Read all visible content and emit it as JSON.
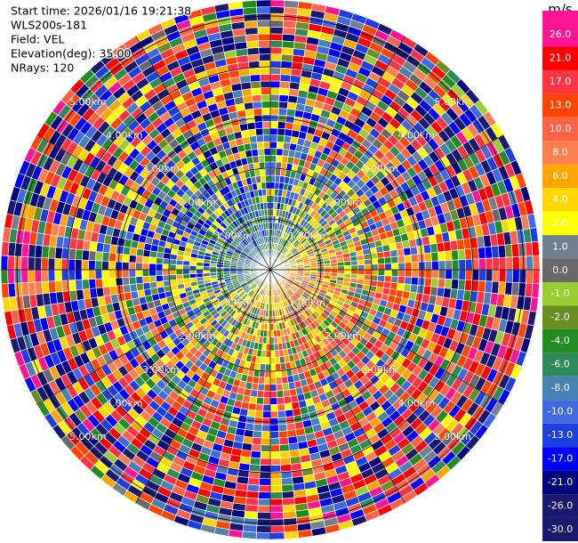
{
  "chart_data": {
    "type": "ppi",
    "header": [
      "Start time: 2026/01/16 19:21:38",
      "WLS200s-181",
      "Field: VEL",
      "Elevation(deg): 35.00",
      "NRays: 120"
    ],
    "range_rings": [
      {
        "value": 1,
        "label": "1.00km"
      },
      {
        "value": 2,
        "label": "2.00km"
      },
      {
        "value": 3,
        "label": "3.00km"
      },
      {
        "value": 4,
        "label": "4.00km"
      },
      {
        "value": 5,
        "label": "5.00km"
      }
    ],
    "colorbar": {
      "unit": "m/s",
      "ticks": [
        {
          "value": 26,
          "label": "26.0"
        },
        {
          "value": 21,
          "label": "21.0"
        },
        {
          "value": 17,
          "label": "17.0"
        },
        {
          "value": 13,
          "label": "13.0"
        },
        {
          "value": 10,
          "label": "10.0"
        },
        {
          "value": 8,
          "label": "8.0"
        },
        {
          "value": 6,
          "label": "6.0"
        },
        {
          "value": 4,
          "label": "4.0"
        },
        {
          "value": 2,
          "label": "2.0"
        },
        {
          "value": 1,
          "label": "1.0"
        },
        {
          "value": 0,
          "label": "0.0"
        },
        {
          "value": -1,
          "label": "-1.0"
        },
        {
          "value": -2,
          "label": "-2.0"
        },
        {
          "value": -4,
          "label": "-4.0"
        },
        {
          "value": -6,
          "label": "-6.0"
        },
        {
          "value": -8,
          "label": "-8.0"
        },
        {
          "value": -10,
          "label": "-10.0"
        },
        {
          "value": -13,
          "label": "-13.0"
        },
        {
          "value": -17,
          "label": "-17.0"
        },
        {
          "value": -21,
          "label": "-21.0"
        },
        {
          "value": -26,
          "label": "-26.0"
        },
        {
          "value": -30,
          "label": "-30.0"
        }
      ],
      "colors": [
        "#ff1493",
        "#ff0000",
        "#ff3344",
        "#ff4500",
        "#ff6347",
        "#ff7f50",
        "#ffa500",
        "#ffd700",
        "#ffff00",
        "#708090",
        "#696969",
        "#9acd32",
        "#6b8e23",
        "#228b22",
        "#2e8b57",
        "#4682b4",
        "#4169e1",
        "#1e3fe0",
        "#0000ff",
        "#000080",
        "#191970",
        "#191970"
      ]
    }
  }
}
